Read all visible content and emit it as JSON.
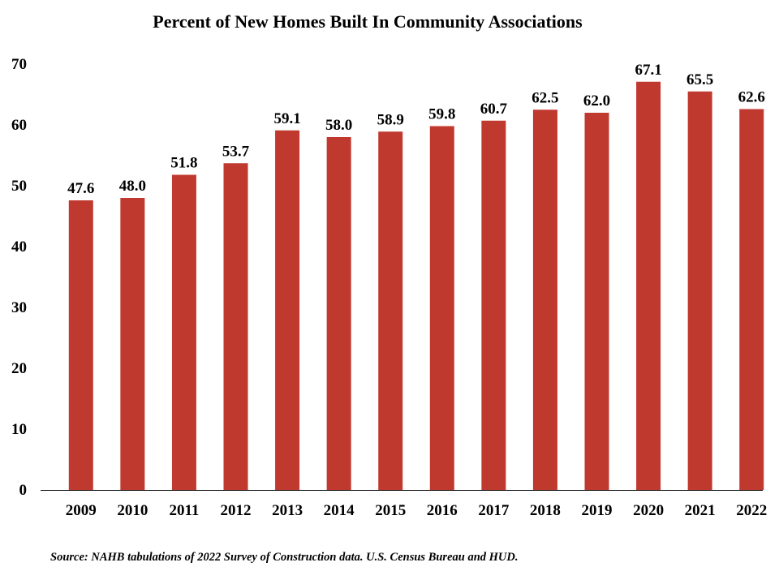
{
  "chart_data": {
    "type": "bar",
    "title": "Percent of New Homes Built In Community Associations",
    "xlabel": "",
    "ylabel": "",
    "categories": [
      "2009",
      "2010",
      "2011",
      "2012",
      "2013",
      "2014",
      "2015",
      "2016",
      "2017",
      "2018",
      "2019",
      "2020",
      "2021",
      "2022"
    ],
    "values": [
      47.6,
      48.0,
      51.8,
      53.7,
      59.1,
      58.0,
      58.9,
      59.8,
      60.7,
      62.5,
      62.0,
      67.1,
      65.5,
      62.6
    ],
    "value_labels": [
      "47.6",
      "48.0",
      "51.8",
      "53.7",
      "59.1",
      "58.0",
      "58.9",
      "59.8",
      "60.7",
      "62.5",
      "62.0",
      "67.1",
      "65.5",
      "62.6"
    ],
    "ylim": [
      0,
      70
    ],
    "yticks": [
      "0",
      "10",
      "20",
      "30",
      "40",
      "50",
      "60",
      "70"
    ],
    "bar_color": "#c0392f",
    "grid": false,
    "legend": "none",
    "source": "Source: NAHB tabulations of 2022 Survey of Construction data. U.S. Census Bureau and HUD."
  }
}
